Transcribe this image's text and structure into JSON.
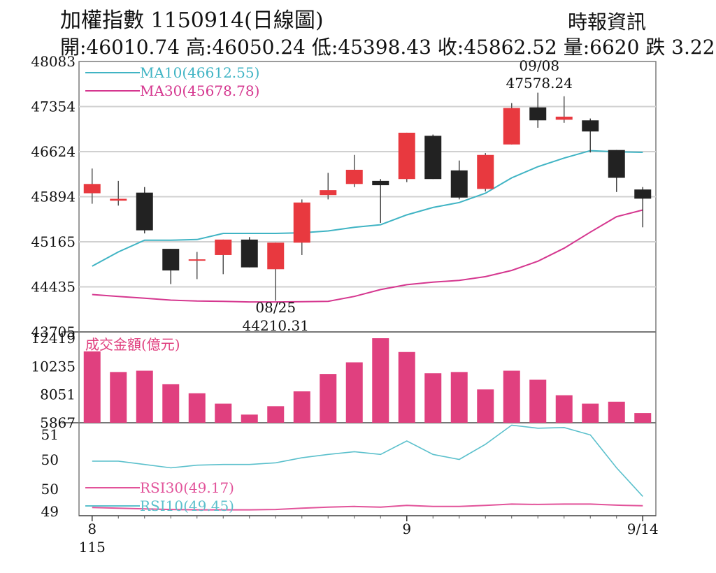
{
  "header": {
    "title": "加權指數 1150914(日線圖)",
    "source": "時報資訊",
    "ohlc": "開:46010.74 高:46050.24 低:45398.43 收:45862.52 量:6620 跌 3.22"
  },
  "colors": {
    "up": "#e8393f",
    "down": "#222222",
    "ma10": "#40b4c4",
    "ma30": "#d5378f",
    "volume": "#e0407f",
    "rsi10": "#5bc0cc",
    "rsi30": "#e2539a",
    "grid": "#d0d0d0"
  },
  "chart_data": [
    {
      "type": "candlestick",
      "name": "price",
      "yticks": [
        "48083",
        "47354",
        "46624",
        "45894",
        "45165",
        "44435",
        "43705"
      ],
      "ylim": [
        43705,
        48083
      ],
      "legend": [
        {
          "text": "MA10(46612.55)",
          "color": "#40b4c4"
        },
        {
          "text": "MA30(45678.78)",
          "color": "#d5378f"
        }
      ],
      "annotations": [
        {
          "date": "09/08",
          "value": "47578.24",
          "label_date": "09/08",
          "label_value": "47578.24",
          "pos": "above"
        },
        {
          "date": "08/25",
          "value": "44210.31",
          "label_date": "08/25",
          "label_value": "44210.31",
          "pos": "below"
        }
      ],
      "candles": [
        {
          "o": 45950,
          "h": 46350,
          "l": 45780,
          "c": 46100
        },
        {
          "o": 45830,
          "h": 46150,
          "l": 45750,
          "c": 45860
        },
        {
          "o": 45960,
          "h": 46050,
          "l": 45300,
          "c": 45350
        },
        {
          "o": 45050,
          "h": 45050,
          "l": 44480,
          "c": 44700
        },
        {
          "o": 44880,
          "h": 45000,
          "l": 44560,
          "c": 44880
        },
        {
          "o": 44950,
          "h": 45200,
          "l": 44640,
          "c": 45200
        },
        {
          "o": 45200,
          "h": 45240,
          "l": 44750,
          "c": 44750
        },
        {
          "o": 44720,
          "h": 45150,
          "l": 44210,
          "c": 45150
        },
        {
          "o": 45150,
          "h": 45850,
          "l": 44950,
          "c": 45800
        },
        {
          "o": 45920,
          "h": 46280,
          "l": 45850,
          "c": 46000
        },
        {
          "o": 46100,
          "h": 46570,
          "l": 46050,
          "c": 46330
        },
        {
          "o": 46150,
          "h": 46180,
          "l": 45470,
          "c": 46080
        },
        {
          "o": 46180,
          "h": 46930,
          "l": 46130,
          "c": 46930
        },
        {
          "o": 46880,
          "h": 46900,
          "l": 46180,
          "c": 46180
        },
        {
          "o": 46320,
          "h": 46480,
          "l": 45850,
          "c": 45880
        },
        {
          "o": 46020,
          "h": 46600,
          "l": 45980,
          "c": 46570
        },
        {
          "o": 46740,
          "h": 47410,
          "l": 46740,
          "c": 47330
        },
        {
          "o": 47340,
          "h": 47578.24,
          "l": 47010,
          "c": 47130
        },
        {
          "o": 47140,
          "h": 47520,
          "l": 47090,
          "c": 47190
        },
        {
          "o": 47130,
          "h": 47160,
          "l": 46610,
          "c": 46950
        },
        {
          "o": 46650,
          "h": 46650,
          "l": 45970,
          "c": 46200
        },
        {
          "o": 46010.74,
          "h": 46050.24,
          "l": 45398.43,
          "c": 45862.52
        }
      ],
      "ma10": [
        44770,
        45000,
        45190,
        45190,
        45200,
        45300,
        45300,
        45300,
        45310,
        45340,
        45400,
        45440,
        45600,
        45720,
        45800,
        45950,
        46200,
        46380,
        46520,
        46640,
        46620,
        46612.55
      ],
      "ma30": [
        44310,
        44280,
        44250,
        44220,
        44205,
        44200,
        44190,
        44190,
        44195,
        44200,
        44280,
        44390,
        44470,
        44510,
        44540,
        44600,
        44700,
        44850,
        45060,
        45320,
        45570,
        45678.78
      ]
    },
    {
      "type": "bar",
      "name": "成交金額(億元)",
      "title": "成交金額(億元)",
      "yticks": [
        "12419",
        "10235",
        "8051",
        "5867"
      ],
      "ylim": [
        5867,
        12419
      ],
      "values": [
        11400,
        9800,
        9900,
        8850,
        8150,
        7350,
        6500,
        7150,
        8300,
        9650,
        10550,
        12419,
        11350,
        9700,
        9800,
        8450,
        9900,
        9200,
        8000,
        7350,
        7500,
        6620
      ]
    },
    {
      "type": "line",
      "name": "RSI",
      "yticks": [
        "51",
        "50",
        "50",
        "49"
      ],
      "legend": [
        {
          "text": "RSI30(49.17)",
          "color": "#e2539a"
        },
        {
          "text": "RSI10(49.45)",
          "color": "#5bc0cc"
        }
      ],
      "series": [
        {
          "name": "RSI10(49.45)",
          "values": [
            50.5,
            50.5,
            50.4,
            50.3,
            50.38,
            50.4,
            50.4,
            50.45,
            50.6,
            50.7,
            50.78,
            50.7,
            51.1,
            50.7,
            50.55,
            51.0,
            51.57,
            51.48,
            51.5,
            51.28,
            50.3,
            49.45
          ]
        },
        {
          "name": "RSI30(49.17)",
          "values": [
            49.12,
            49.1,
            49.08,
            49.06,
            49.05,
            49.05,
            49.05,
            49.06,
            49.1,
            49.13,
            49.15,
            49.13,
            49.18,
            49.15,
            49.15,
            49.18,
            49.22,
            49.21,
            49.22,
            49.22,
            49.19,
            49.17
          ]
        }
      ]
    }
  ],
  "xaxis": {
    "labels": [
      {
        "text": "8",
        "index": 0
      },
      {
        "text": "115",
        "index": 0,
        "row": 2
      },
      {
        "text": "9",
        "index": 12
      },
      {
        "text": "9/14",
        "index": 21
      }
    ]
  }
}
